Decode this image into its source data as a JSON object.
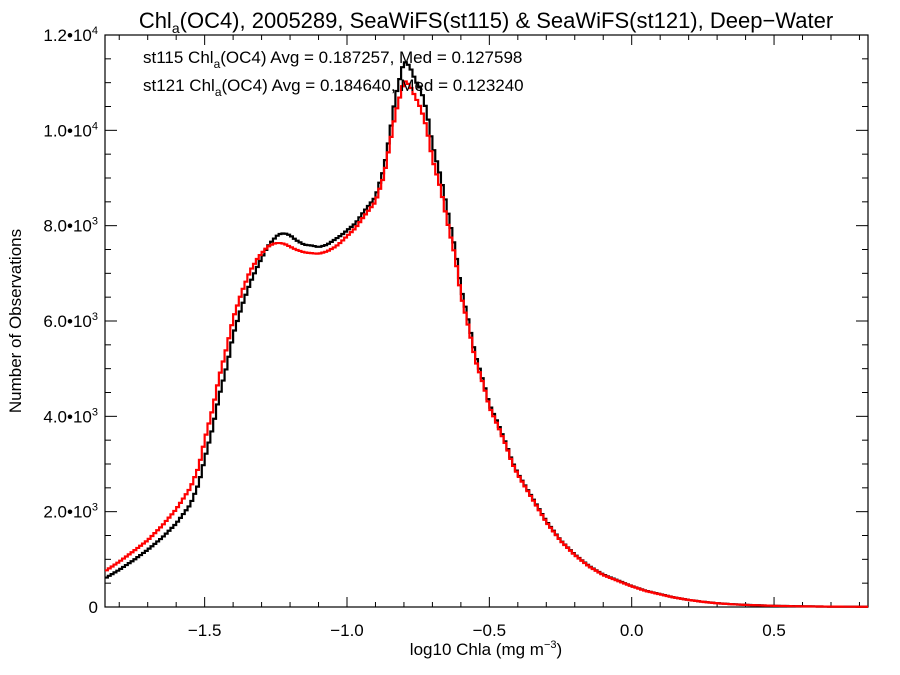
{
  "chart_data": {
    "type": "line",
    "title": {
      "prefix": "Chl",
      "sub": "a",
      "suffix": "(OC4), 2005289, SeaWiFS(st115) & SeaWiFS(st121), Deep−Water"
    },
    "xlabel": {
      "text": "log10 Chla (mg m",
      "sup": "−3",
      "end": ")"
    },
    "ylabel": "Number of Observations",
    "xlim": [
      -1.85,
      0.83
    ],
    "ylim": [
      0,
      12000
    ],
    "xticks": [
      {
        "value": -1.5,
        "label": "−1.5"
      },
      {
        "value": -1.0,
        "label": "−1.0"
      },
      {
        "value": -0.5,
        "label": "−0.5"
      },
      {
        "value": 0.0,
        "label": "0.0"
      },
      {
        "value": 0.5,
        "label": "0.5"
      }
    ],
    "yticks": [
      {
        "value": 0,
        "base": "0",
        "sup": ""
      },
      {
        "value": 2000,
        "base": "2.0•10",
        "sup": "3"
      },
      {
        "value": 4000,
        "base": "4.0•10",
        "sup": "3"
      },
      {
        "value": 6000,
        "base": "6.0•10",
        "sup": "3"
      },
      {
        "value": 8000,
        "base": "8.0•10",
        "sup": "3"
      },
      {
        "value": 10000,
        "base": "1.0•10",
        "sup": "4"
      },
      {
        "value": 12000,
        "base": "1.2•10",
        "sup": "4"
      }
    ],
    "grid": false,
    "annotations": [
      {
        "pre": "st115 Chl",
        "sub": "a",
        "post": "(OC4) Avg = 0.187257, Med = 0.127598",
        "color": "#000000"
      },
      {
        "pre": "st121 Chl",
        "sub": "a",
        "post": "(OC4) Avg = 0.184640, Med = 0.123240",
        "color": "#ff0000"
      }
    ],
    "series": [
      {
        "color": "#000000",
        "points": [
          [
            -1.85,
            600
          ],
          [
            -1.8,
            780
          ],
          [
            -1.75,
            980
          ],
          [
            -1.7,
            1200
          ],
          [
            -1.65,
            1450
          ],
          [
            -1.6,
            1750
          ],
          [
            -1.55,
            2150
          ],
          [
            -1.52,
            2600
          ],
          [
            -1.5,
            3100
          ],
          [
            -1.47,
            3800
          ],
          [
            -1.45,
            4400
          ],
          [
            -1.42,
            5100
          ],
          [
            -1.4,
            5700
          ],
          [
            -1.37,
            6300
          ],
          [
            -1.34,
            6800
          ],
          [
            -1.31,
            7200
          ],
          [
            -1.28,
            7550
          ],
          [
            -1.26,
            7700
          ],
          [
            -1.24,
            7820
          ],
          [
            -1.22,
            7840
          ],
          [
            -1.2,
            7800
          ],
          [
            -1.18,
            7700
          ],
          [
            -1.15,
            7600
          ],
          [
            -1.12,
            7580
          ],
          [
            -1.1,
            7550
          ],
          [
            -1.07,
            7600
          ],
          [
            -1.04,
            7720
          ],
          [
            -1.02,
            7800
          ],
          [
            -1.0,
            7900
          ],
          [
            -0.97,
            8050
          ],
          [
            -0.94,
            8300
          ],
          [
            -0.9,
            8600
          ],
          [
            -0.87,
            9200
          ],
          [
            -0.85,
            9900
          ],
          [
            -0.83,
            10700
          ],
          [
            -0.81,
            11200
          ],
          [
            -0.8,
            11450
          ],
          [
            -0.78,
            11350
          ],
          [
            -0.76,
            11050
          ],
          [
            -0.74,
            10850
          ],
          [
            -0.72,
            10400
          ],
          [
            -0.7,
            9700
          ],
          [
            -0.67,
            9000
          ],
          [
            -0.65,
            8400
          ],
          [
            -0.62,
            7500
          ],
          [
            -0.6,
            6700
          ],
          [
            -0.57,
            5900
          ],
          [
            -0.55,
            5300
          ],
          [
            -0.52,
            4700
          ],
          [
            -0.5,
            4250
          ],
          [
            -0.47,
            3850
          ],
          [
            -0.44,
            3400
          ],
          [
            -0.42,
            3050
          ],
          [
            -0.4,
            2800
          ],
          [
            -0.35,
            2300
          ],
          [
            -0.3,
            1800
          ],
          [
            -0.25,
            1400
          ],
          [
            -0.2,
            1100
          ],
          [
            -0.15,
            860
          ],
          [
            -0.1,
            680
          ],
          [
            -0.05,
            560
          ],
          [
            0.0,
            440
          ],
          [
            0.05,
            340
          ],
          [
            0.1,
            270
          ],
          [
            0.15,
            200
          ],
          [
            0.2,
            150
          ],
          [
            0.25,
            110
          ],
          [
            0.3,
            80
          ],
          [
            0.35,
            60
          ],
          [
            0.4,
            45
          ],
          [
            0.5,
            25
          ],
          [
            0.6,
            15
          ],
          [
            0.7,
            8
          ],
          [
            0.83,
            5
          ]
        ]
      },
      {
        "color": "#ff0000",
        "points": [
          [
            -1.85,
            750
          ],
          [
            -1.8,
            950
          ],
          [
            -1.75,
            1170
          ],
          [
            -1.7,
            1400
          ],
          [
            -1.65,
            1700
          ],
          [
            -1.6,
            2050
          ],
          [
            -1.55,
            2500
          ],
          [
            -1.52,
            2950
          ],
          [
            -1.5,
            3500
          ],
          [
            -1.47,
            4200
          ],
          [
            -1.45,
            4800
          ],
          [
            -1.42,
            5500
          ],
          [
            -1.4,
            6050
          ],
          [
            -1.37,
            6600
          ],
          [
            -1.34,
            7050
          ],
          [
            -1.31,
            7350
          ],
          [
            -1.28,
            7550
          ],
          [
            -1.26,
            7620
          ],
          [
            -1.24,
            7640
          ],
          [
            -1.22,
            7620
          ],
          [
            -1.2,
            7560
          ],
          [
            -1.18,
            7500
          ],
          [
            -1.15,
            7440
          ],
          [
            -1.12,
            7420
          ],
          [
            -1.1,
            7410
          ],
          [
            -1.07,
            7460
          ],
          [
            -1.04,
            7560
          ],
          [
            -1.02,
            7660
          ],
          [
            -1.0,
            7780
          ],
          [
            -0.97,
            7950
          ],
          [
            -0.94,
            8200
          ],
          [
            -0.9,
            8500
          ],
          [
            -0.87,
            9050
          ],
          [
            -0.85,
            9700
          ],
          [
            -0.83,
            10350
          ],
          [
            -0.81,
            10800
          ],
          [
            -0.8,
            11050
          ],
          [
            -0.78,
            10950
          ],
          [
            -0.76,
            10700
          ],
          [
            -0.74,
            10450
          ],
          [
            -0.72,
            10050
          ],
          [
            -0.7,
            9400
          ],
          [
            -0.67,
            8750
          ],
          [
            -0.65,
            8150
          ],
          [
            -0.62,
            7350
          ],
          [
            -0.6,
            6550
          ],
          [
            -0.57,
            5800
          ],
          [
            -0.55,
            5200
          ],
          [
            -0.52,
            4650
          ],
          [
            -0.5,
            4200
          ],
          [
            -0.47,
            3800
          ],
          [
            -0.44,
            3370
          ],
          [
            -0.42,
            3020
          ],
          [
            -0.4,
            2780
          ],
          [
            -0.35,
            2280
          ],
          [
            -0.3,
            1780
          ],
          [
            -0.25,
            1390
          ],
          [
            -0.2,
            1090
          ],
          [
            -0.15,
            850
          ],
          [
            -0.1,
            670
          ],
          [
            -0.05,
            550
          ],
          [
            0.0,
            435
          ],
          [
            0.05,
            335
          ],
          [
            0.1,
            265
          ],
          [
            0.15,
            198
          ],
          [
            0.2,
            148
          ],
          [
            0.25,
            108
          ],
          [
            0.3,
            78
          ],
          [
            0.35,
            58
          ],
          [
            0.4,
            44
          ],
          [
            0.5,
            24
          ],
          [
            0.6,
            14
          ],
          [
            0.7,
            8
          ],
          [
            0.83,
            5
          ]
        ]
      }
    ]
  }
}
